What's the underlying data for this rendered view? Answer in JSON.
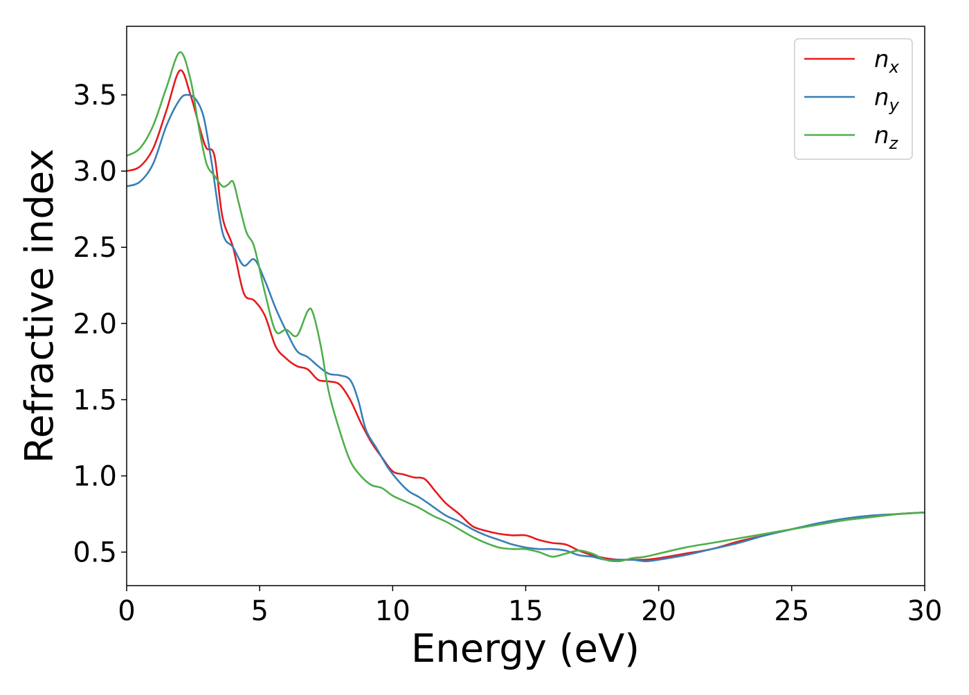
{
  "chart_data": {
    "type": "line",
    "title": "",
    "xlabel": "Energy (eV)",
    "ylabel": "Refractive index",
    "xlim": [
      0,
      30
    ],
    "ylim": [
      0.28,
      3.95
    ],
    "xticks": [
      0,
      5,
      10,
      15,
      20,
      25,
      30
    ],
    "yticks": [
      0.5,
      1.0,
      1.5,
      2.0,
      2.5,
      3.0,
      3.5
    ],
    "xtick_labels": [
      "0",
      "5",
      "10",
      "15",
      "20",
      "25",
      "30"
    ],
    "ytick_labels": [
      "0.5",
      "1.0",
      "1.5",
      "2.0",
      "2.5",
      "3.0",
      "3.5"
    ],
    "grid": false,
    "legend_position": "top-right",
    "series": [
      {
        "name": "n_x",
        "symbol": "n",
        "subscript": "x",
        "color": "#e41a1c",
        "x": [
          0,
          0.5,
          1.0,
          1.5,
          2.0,
          2.4,
          2.8,
          3.0,
          3.3,
          3.6,
          4.0,
          4.4,
          4.8,
          5.2,
          5.6,
          6.0,
          6.4,
          6.8,
          7.2,
          7.6,
          8.0,
          8.4,
          8.8,
          9.2,
          9.6,
          10.0,
          10.4,
          10.8,
          11.2,
          11.6,
          12.0,
          12.5,
          13.0,
          13.5,
          14.0,
          14.5,
          15.0,
          15.5,
          16.0,
          16.5,
          17.0,
          17.5,
          18.0,
          18.5,
          19.0,
          19.5,
          20.0,
          21.0,
          22.0,
          23.0,
          24.0,
          25.0,
          26.0,
          27.0,
          28.0,
          29.0,
          30.0
        ],
        "y": [
          3.0,
          3.03,
          3.15,
          3.4,
          3.66,
          3.5,
          3.25,
          3.15,
          3.1,
          2.7,
          2.5,
          2.2,
          2.15,
          2.05,
          1.85,
          1.77,
          1.72,
          1.7,
          1.63,
          1.62,
          1.6,
          1.5,
          1.35,
          1.22,
          1.12,
          1.03,
          1.01,
          0.99,
          0.98,
          0.9,
          0.82,
          0.75,
          0.67,
          0.64,
          0.62,
          0.61,
          0.61,
          0.58,
          0.56,
          0.55,
          0.51,
          0.48,
          0.46,
          0.45,
          0.45,
          0.45,
          0.46,
          0.49,
          0.52,
          0.57,
          0.61,
          0.65,
          0.68,
          0.71,
          0.73,
          0.75,
          0.76
        ]
      },
      {
        "name": "n_y",
        "symbol": "n",
        "subscript": "y",
        "color": "#377eb8",
        "x": [
          0,
          0.5,
          1.0,
          1.5,
          2.0,
          2.3,
          2.6,
          2.9,
          3.2,
          3.6,
          4.0,
          4.4,
          4.8,
          5.2,
          5.6,
          6.0,
          6.4,
          6.8,
          7.2,
          7.6,
          8.0,
          8.4,
          8.7,
          9.0,
          9.4,
          9.8,
          10.2,
          10.6,
          11.0,
          11.5,
          12.0,
          12.5,
          13.0,
          13.5,
          14.0,
          14.5,
          15.0,
          15.5,
          16.0,
          16.5,
          17.0,
          17.5,
          18.0,
          18.5,
          19.0,
          19.5,
          20.0,
          21.0,
          22.0,
          23.0,
          24.0,
          25.0,
          26.0,
          27.0,
          28.0,
          29.0,
          30.0
        ],
        "y": [
          2.9,
          2.93,
          3.05,
          3.3,
          3.47,
          3.5,
          3.47,
          3.35,
          3.05,
          2.6,
          2.5,
          2.38,
          2.42,
          2.28,
          2.1,
          1.95,
          1.82,
          1.78,
          1.72,
          1.67,
          1.66,
          1.63,
          1.5,
          1.3,
          1.18,
          1.06,
          0.97,
          0.9,
          0.86,
          0.8,
          0.74,
          0.7,
          0.65,
          0.61,
          0.58,
          0.55,
          0.53,
          0.52,
          0.52,
          0.51,
          0.48,
          0.47,
          0.45,
          0.45,
          0.45,
          0.44,
          0.45,
          0.48,
          0.52,
          0.56,
          0.61,
          0.65,
          0.69,
          0.72,
          0.74,
          0.75,
          0.76
        ]
      },
      {
        "name": "n_z",
        "symbol": "n",
        "subscript": "z",
        "color": "#4daf4a",
        "x": [
          0,
          0.5,
          1.0,
          1.5,
          2.0,
          2.4,
          2.7,
          3.0,
          3.3,
          3.6,
          3.8,
          4.0,
          4.2,
          4.5,
          4.8,
          5.2,
          5.6,
          6.0,
          6.4,
          6.8,
          7.0,
          7.3,
          7.6,
          8.0,
          8.4,
          8.8,
          9.2,
          9.6,
          10.0,
          10.5,
          11.0,
          11.5,
          12.0,
          12.5,
          13.0,
          13.5,
          14.0,
          14.5,
          15.0,
          15.5,
          16.0,
          16.5,
          17.0,
          17.5,
          18.0,
          18.5,
          19.0,
          19.5,
          20.0,
          21.0,
          22.0,
          23.0,
          24.0,
          25.0,
          26.0,
          27.0,
          28.0,
          29.0,
          30.0
        ],
        "y": [
          3.1,
          3.15,
          3.3,
          3.55,
          3.78,
          3.6,
          3.3,
          3.05,
          2.97,
          2.9,
          2.91,
          2.93,
          2.8,
          2.6,
          2.5,
          2.2,
          1.95,
          1.96,
          1.92,
          2.08,
          2.07,
          1.85,
          1.55,
          1.3,
          1.1,
          1.0,
          0.94,
          0.92,
          0.87,
          0.83,
          0.79,
          0.74,
          0.7,
          0.65,
          0.6,
          0.56,
          0.53,
          0.52,
          0.52,
          0.5,
          0.47,
          0.49,
          0.51,
          0.49,
          0.45,
          0.44,
          0.46,
          0.47,
          0.49,
          0.53,
          0.56,
          0.59,
          0.62,
          0.65,
          0.68,
          0.71,
          0.73,
          0.75,
          0.76
        ]
      }
    ]
  }
}
